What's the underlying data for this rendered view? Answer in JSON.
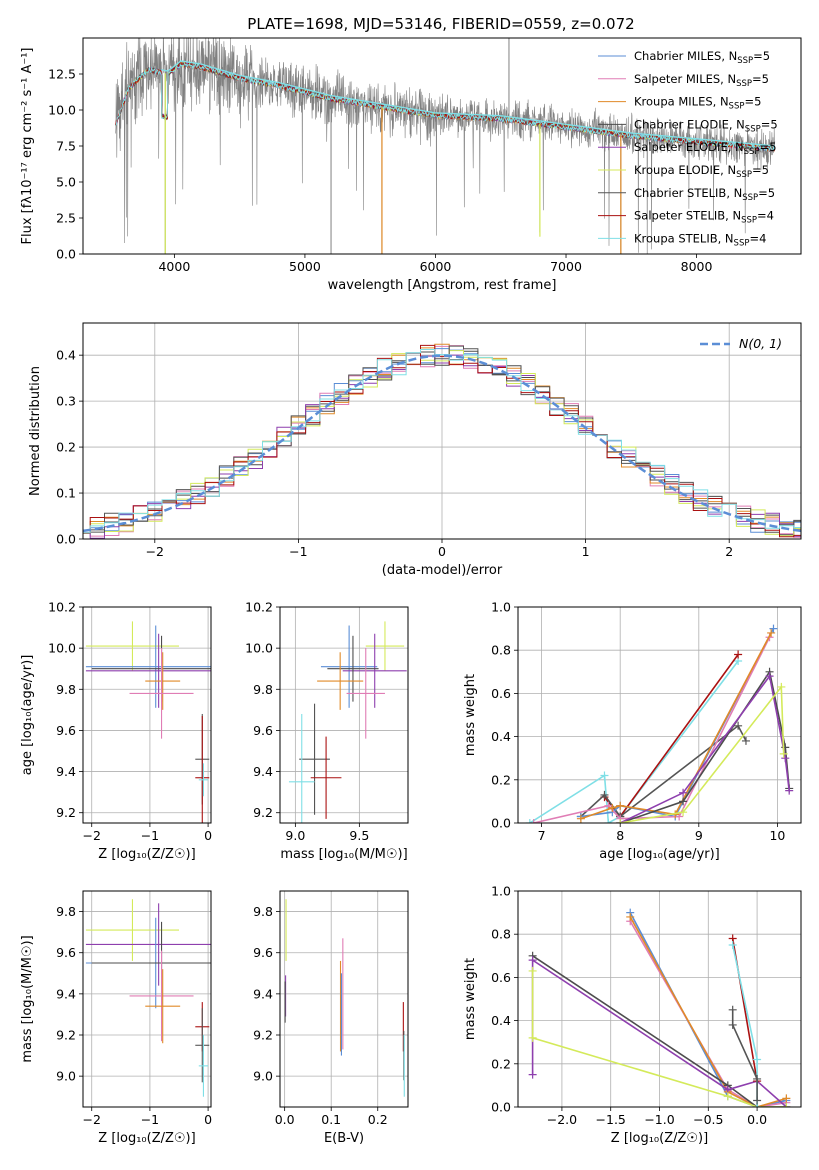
{
  "figure": {
    "title": "PLATE=1698, MJD=53146, FIBERID=0559, z=0.072"
  },
  "colors": {
    "chabrier_miles": "#5b8ed6",
    "salpeter_miles": "#e07db5",
    "kroupa_miles": "#e08a28",
    "chabrier_elodie": "#4d4d4d",
    "salpeter_elodie": "#8e3fae",
    "kroupa_elodie": "#d4ea5a",
    "chabrier_stelib": "#555555",
    "salpeter_stelib": "#aa1111",
    "kroupa_stelib": "#7fdfe6",
    "data": "#808080",
    "grid": "#b0b0b0",
    "normal": "#5b8ed6"
  },
  "legend": [
    {
      "key": "chabrier_miles",
      "text": "Chabrier MILES, N",
      "sub": "SSP",
      "tail": "=5"
    },
    {
      "key": "salpeter_miles",
      "text": "Salpeter MILES, N",
      "sub": "SSP",
      "tail": "=5"
    },
    {
      "key": "kroupa_miles",
      "text": "Kroupa MILES, N",
      "sub": "SSP",
      "tail": "=5"
    },
    {
      "key": "chabrier_elodie",
      "text": "Chabrier ELODIE, N",
      "sub": "SSP",
      "tail": "=5"
    },
    {
      "key": "salpeter_elodie",
      "text": "Salpeter ELODIE, N",
      "sub": "SSP",
      "tail": "=5"
    },
    {
      "key": "kroupa_elodie",
      "text": "Kroupa ELODIE, N",
      "sub": "SSP",
      "tail": "=5"
    },
    {
      "key": "chabrier_stelib",
      "text": "Chabrier STELIB, N",
      "sub": "SSP",
      "tail": "=5"
    },
    {
      "key": "salpeter_stelib",
      "text": "Salpeter STELIB, N",
      "sub": "SSP",
      "tail": "=4"
    },
    {
      "key": "kroupa_stelib",
      "text": "Kroupa STELIB, N",
      "sub": "SSP",
      "tail": "=4"
    }
  ],
  "chart_data": [
    {
      "id": "spectrum",
      "type": "line",
      "xlabel": "wavelength [Angstrom, rest frame]",
      "ylabel": "Flux [fλ10⁻¹⁷ erg cm⁻² s⁻¹ A⁻¹]",
      "xlim": [
        3300,
        8800
      ],
      "ylim": [
        0,
        15
      ],
      "xticks": [
        4000,
        5000,
        6000,
        7000,
        8000
      ],
      "yticks": [
        0.0,
        2.5,
        5.0,
        7.5,
        10.0,
        12.5
      ],
      "grid": false,
      "legend_position": "top-right",
      "continuum": [
        [
          3550,
          9.0
        ],
        [
          3650,
          11.5
        ],
        [
          3800,
          12.8
        ],
        [
          3950,
          12.5
        ],
        [
          4050,
          13.2
        ],
        [
          4200,
          13.0
        ],
        [
          4500,
          12.2
        ],
        [
          4800,
          11.7
        ],
        [
          5200,
          10.8
        ],
        [
          5600,
          10.2
        ],
        [
          6000,
          9.6
        ],
        [
          6500,
          9.4
        ],
        [
          7000,
          8.8
        ],
        [
          7500,
          8.2
        ],
        [
          8000,
          7.8
        ],
        [
          8600,
          7.3
        ]
      ],
      "model_xrange": [
        3550,
        8600
      ],
      "spikes": [
        {
          "x": 3930,
          "y": 0
        },
        {
          "x": 5200,
          "y": 0
        },
        {
          "x": 5590,
          "y": 0
        },
        {
          "x": 6563,
          "y": 15
        },
        {
          "x": 6800,
          "y": 1.5
        },
        {
          "x": 7420,
          "y": 0
        }
      ]
    },
    {
      "id": "residual_hist",
      "type": "line",
      "xlabel": "(data-model)/error",
      "ylabel": "Normed distribution",
      "xlim": [
        -2.5,
        2.5
      ],
      "ylim": [
        0,
        0.47
      ],
      "xticks": [
        -2,
        -1,
        0,
        1,
        2
      ],
      "yticks": [
        0.0,
        0.1,
        0.2,
        0.3,
        0.4
      ],
      "grid": true,
      "legend_position": "top-right",
      "normal_label": "N(0, 1)",
      "bin_width": 0.1
    },
    {
      "id": "age_vs_Z",
      "type": "scatter",
      "xlabel": "Z [log₁₀(Z/Z☉)]",
      "ylabel": "age  [log₁₀(age/yr)]",
      "xlim": [
        -2.15,
        0.05
      ],
      "ylim": [
        9.15,
        10.2
      ],
      "xticks": [
        -2,
        -1,
        0
      ],
      "yticks": [
        9.2,
        9.4,
        9.6,
        9.8,
        10.0,
        10.2
      ],
      "grid": true,
      "points": [
        {
          "key": "kroupa_elodie",
          "x": -1.3,
          "y": 10.01,
          "xerr": 0.8,
          "yerr": 0.12
        },
        {
          "key": "chabrier_miles",
          "x": -0.9,
          "y": 9.91,
          "xerr": 1.2,
          "yerr": 0.2
        },
        {
          "key": "salpeter_elodie",
          "x": -0.85,
          "y": 9.89,
          "xerr": 1.25,
          "yerr": 0.18
        },
        {
          "key": "chabrier_elodie",
          "x": -0.8,
          "y": 9.9,
          "xerr": 1.2,
          "yerr": 0.16
        },
        {
          "key": "kroupa_miles",
          "x": -0.78,
          "y": 9.84,
          "xerr": 0.3,
          "yerr": 0.14
        },
        {
          "key": "salpeter_miles",
          "x": -0.8,
          "y": 9.78,
          "xerr": 0.55,
          "yerr": 0.22
        },
        {
          "key": "chabrier_stelib",
          "x": -0.1,
          "y": 9.46,
          "xerr": 0.12,
          "yerr": 0.22
        },
        {
          "key": "salpeter_stelib",
          "x": -0.1,
          "y": 9.37,
          "xerr": 0.12,
          "yerr": 0.3
        },
        {
          "key": "kroupa_stelib",
          "x": -0.08,
          "y": 9.36,
          "xerr": 0.08,
          "yerr": 0.08
        }
      ]
    },
    {
      "id": "age_vs_mass",
      "type": "scatter",
      "xlabel": "mass [log₁₀(M/M☉)]",
      "ylabel": "",
      "xlim": [
        8.88,
        9.88
      ],
      "ylim": [
        9.15,
        10.2
      ],
      "xticks": [
        9.0,
        9.5
      ],
      "yticks": [
        9.2,
        9.4,
        9.6,
        9.8,
        10.0,
        10.2
      ],
      "grid": true,
      "points": [
        {
          "key": "kroupa_elodie",
          "x": 9.7,
          "y": 10.01,
          "xerr": 0.15,
          "yerr": 0.12
        },
        {
          "key": "chabrier_miles",
          "x": 9.42,
          "y": 9.91,
          "xerr": 0.22,
          "yerr": 0.2
        },
        {
          "key": "salpeter_elodie",
          "x": 9.62,
          "y": 9.89,
          "xerr": 0.25,
          "yerr": 0.18
        },
        {
          "key": "chabrier_elodie",
          "x": 9.45,
          "y": 9.9,
          "xerr": 0.2,
          "yerr": 0.16
        },
        {
          "key": "kroupa_miles",
          "x": 9.35,
          "y": 9.84,
          "xerr": 0.18,
          "yerr": 0.14
        },
        {
          "key": "salpeter_miles",
          "x": 9.55,
          "y": 9.78,
          "xerr": 0.15,
          "yerr": 0.22
        },
        {
          "key": "chabrier_stelib",
          "x": 9.15,
          "y": 9.46,
          "xerr": 0.12,
          "yerr": 0.27
        },
        {
          "key": "salpeter_stelib",
          "x": 9.24,
          "y": 9.37,
          "xerr": 0.12,
          "yerr": 0.2
        },
        {
          "key": "kroupa_stelib",
          "x": 9.05,
          "y": 9.35,
          "xerr": 0.1,
          "yerr": 0.33
        }
      ]
    },
    {
      "id": "mass_weight_vs_age",
      "type": "line",
      "xlabel": "age  [log₁₀(age/yr)]",
      "ylabel": "mass weight",
      "xlim": [
        6.7,
        10.3
      ],
      "ylim": [
        0,
        1.0
      ],
      "xticks": [
        7,
        8,
        9,
        10
      ],
      "yticks": [
        0.0,
        0.2,
        0.4,
        0.6,
        0.8,
        1.0
      ],
      "grid": true,
      "series": [
        {
          "key": "kroupa_stelib",
          "x": [
            6.85,
            7.8,
            7.85,
            8.0,
            9.5
          ],
          "y": [
            0.0,
            0.22,
            0.0,
            0.03,
            0.75
          ]
        },
        {
          "key": "salpeter_stelib",
          "x": [
            7.8,
            8.0,
            9.5
          ],
          "y": [
            0.12,
            0.03,
            0.78
          ]
        },
        {
          "key": "chabrier_stelib",
          "x": [
            7.5,
            7.8,
            8.0,
            9.5,
            9.6
          ],
          "y": [
            0.03,
            0.13,
            0.03,
            0.45,
            0.38
          ]
        },
        {
          "key": "chabrier_miles",
          "x": [
            7.5,
            7.9,
            8.0,
            8.7,
            9.95
          ],
          "y": [
            0.03,
            0.05,
            0.08,
            0.03,
            0.9
          ]
        },
        {
          "key": "salpeter_miles",
          "x": [
            6.9,
            7.85,
            8.0,
            8.75,
            9.9
          ],
          "y": [
            0.0,
            0.08,
            0.02,
            0.03,
            0.86
          ]
        },
        {
          "key": "kroupa_miles",
          "x": [
            7.5,
            7.9,
            8.0,
            8.7,
            9.92
          ],
          "y": [
            0.02,
            0.07,
            0.08,
            0.04,
            0.88
          ]
        },
        {
          "key": "chabrier_elodie",
          "x": [
            8.0,
            8.8,
            9.9,
            10.1,
            10.15
          ],
          "y": [
            0.0,
            0.1,
            0.7,
            0.35,
            0.16
          ]
        },
        {
          "key": "salpeter_elodie",
          "x": [
            8.0,
            8.8,
            9.9,
            10.1,
            10.15
          ],
          "y": [
            0.0,
            0.14,
            0.68,
            0.3,
            0.15
          ]
        },
        {
          "key": "kroupa_elodie",
          "x": [
            8.0,
            8.8,
            10.05,
            10.08
          ],
          "y": [
            0.0,
            0.05,
            0.63,
            0.32
          ]
        }
      ]
    },
    {
      "id": "mass_vs_Z",
      "type": "scatter",
      "xlabel": "Z [log₁₀(Z/Z☉)]",
      "ylabel": "mass [log₁₀(M/M☉)]",
      "xlim": [
        -2.15,
        0.05
      ],
      "ylim": [
        8.85,
        9.9
      ],
      "xticks": [
        -2,
        -1,
        0
      ],
      "yticks": [
        9.0,
        9.2,
        9.4,
        9.6,
        9.8
      ],
      "grid": true,
      "points": [
        {
          "key": "kroupa_elodie",
          "x": -1.3,
          "y": 9.71,
          "xerr": 0.8,
          "yerr": 0.15
        },
        {
          "key": "salpeter_elodie",
          "x": -0.85,
          "y": 9.64,
          "xerr": 1.25,
          "yerr": 0.2
        },
        {
          "key": "chabrier_miles",
          "x": -0.9,
          "y": 9.55,
          "xerr": 1.2,
          "yerr": 0.22
        },
        {
          "key": "chabrier_elodie",
          "x": -0.8,
          "y": 9.55,
          "xerr": 1.2,
          "yerr": 0.2
        },
        {
          "key": "salpeter_miles",
          "x": -0.8,
          "y": 9.39,
          "xerr": 0.55,
          "yerr": 0.22
        },
        {
          "key": "kroupa_miles",
          "x": -0.78,
          "y": 9.34,
          "xerr": 0.3,
          "yerr": 0.18
        },
        {
          "key": "salpeter_stelib",
          "x": -0.1,
          "y": 9.24,
          "xerr": 0.12,
          "yerr": 0.12
        },
        {
          "key": "chabrier_stelib",
          "x": -0.1,
          "y": 9.15,
          "xerr": 0.12,
          "yerr": 0.18
        },
        {
          "key": "kroupa_stelib",
          "x": -0.08,
          "y": 9.05,
          "xerr": 0.08,
          "yerr": 0.15
        }
      ]
    },
    {
      "id": "mass_vs_ebv",
      "type": "scatter",
      "xlabel": "E(B-V)",
      "ylabel": "",
      "xlim": [
        -0.01,
        0.265
      ],
      "ylim": [
        8.85,
        9.9
      ],
      "xticks": [
        0.0,
        0.1,
        0.2
      ],
      "yticks": [
        9.0,
        9.2,
        9.4,
        9.6,
        9.8
      ],
      "grid": true,
      "points": [
        {
          "key": "kroupa_elodie",
          "x": 0.003,
          "y": 9.71,
          "xerr": 0,
          "yerr": 0.15
        },
        {
          "key": "salpeter_elodie",
          "x": 0.002,
          "y": 9.39,
          "xerr": 0,
          "yerr": 0.1
        },
        {
          "key": "chabrier_elodie",
          "x": 0.001,
          "y": 9.36,
          "xerr": 0,
          "yerr": 0.1
        },
        {
          "key": "salpeter_miles",
          "x": 0.125,
          "y": 9.4,
          "xerr": 0,
          "yerr": 0.27
        },
        {
          "key": "kroupa_miles",
          "x": 0.12,
          "y": 9.34,
          "xerr": 0,
          "yerr": 0.22
        },
        {
          "key": "chabrier_miles",
          "x": 0.122,
          "y": 9.3,
          "xerr": 0,
          "yerr": 0.2
        },
        {
          "key": "salpeter_stelib",
          "x": 0.255,
          "y": 9.24,
          "xerr": 0,
          "yerr": 0.12
        },
        {
          "key": "chabrier_stelib",
          "x": 0.256,
          "y": 9.1,
          "xerr": 0,
          "yerr": 0.12
        },
        {
          "key": "kroupa_stelib",
          "x": 0.257,
          "y": 9.05,
          "xerr": 0,
          "yerr": 0.15
        }
      ]
    },
    {
      "id": "mass_weight_vs_Z",
      "type": "line",
      "xlabel": "Z [log₁₀(Z/Z☉)]",
      "ylabel": "mass weight",
      "xlim": [
        -2.45,
        0.45
      ],
      "ylim": [
        0,
        1.0
      ],
      "xticks": [
        -2.0,
        -1.5,
        -1.0,
        -0.5,
        0.0
      ],
      "yticks": [
        0.0,
        0.2,
        0.4,
        0.6,
        0.8,
        1.0
      ],
      "grid": true,
      "series": [
        {
          "key": "chabrier_miles",
          "x": [
            -1.3,
            -0.3,
            0.0,
            0.3
          ],
          "y": [
            0.9,
            0.05,
            0.0,
            0.03
          ]
        },
        {
          "key": "salpeter_miles",
          "x": [
            -1.3,
            -0.3,
            0.0,
            0.3
          ],
          "y": [
            0.86,
            0.08,
            0.0,
            0.02
          ]
        },
        {
          "key": "kroupa_miles",
          "x": [
            -1.3,
            -0.3,
            0.0,
            0.3
          ],
          "y": [
            0.88,
            0.07,
            0.0,
            0.04
          ]
        },
        {
          "key": "chabrier_elodie",
          "x": [
            -2.3,
            -0.3,
            0.0,
            0.3
          ],
          "y": [
            0.7,
            0.1,
            0.0,
            0.0
          ]
        },
        {
          "key": "salpeter_elodie",
          "x": [
            -2.3,
            -2.3,
            -0.3,
            0.0,
            0.3
          ],
          "y": [
            0.15,
            0.68,
            0.08,
            0.12,
            0.0
          ]
        },
        {
          "key": "kroupa_elodie",
          "x": [
            -2.3,
            -2.3,
            -0.3,
            0.0,
            0.3
          ],
          "y": [
            0.63,
            0.32,
            0.05,
            0.0,
            0.0
          ]
        },
        {
          "key": "salpeter_stelib",
          "x": [
            -0.25,
            0.0
          ],
          "y": [
            0.78,
            0.12
          ]
        },
        {
          "key": "kroupa_stelib",
          "x": [
            -0.25,
            0.0,
            0.0
          ],
          "y": [
            0.75,
            0.22,
            0.0
          ]
        },
        {
          "key": "chabrier_stelib",
          "x": [
            -0.25,
            -0.25,
            0.0,
            0.0
          ],
          "y": [
            0.45,
            0.38,
            0.13,
            0.03
          ]
        }
      ]
    }
  ]
}
